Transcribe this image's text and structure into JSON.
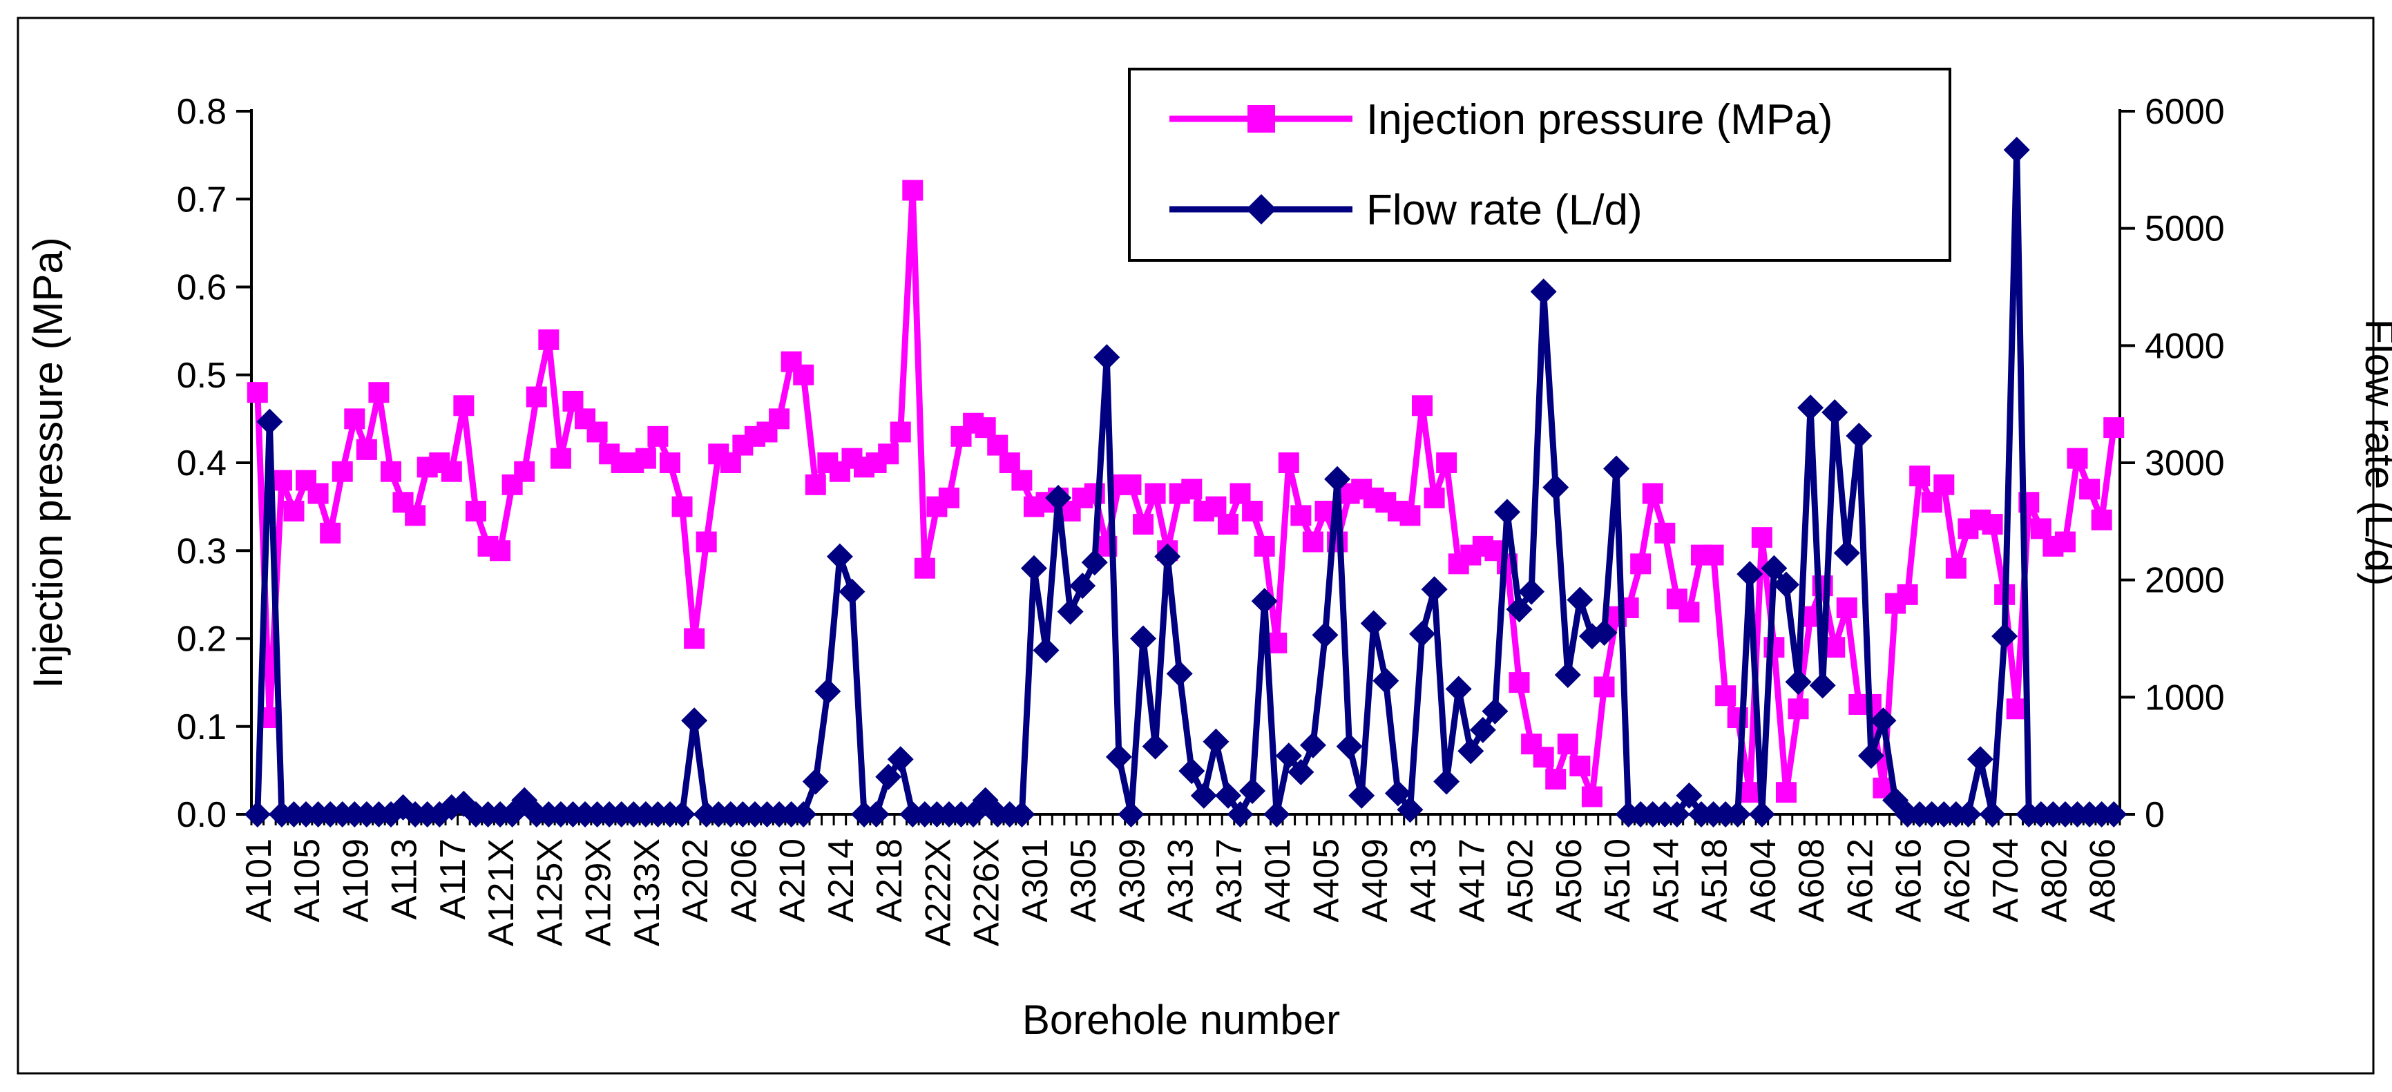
{
  "figure": {
    "background": "#ffffff",
    "border_color": "#000000"
  },
  "chart_data": {
    "type": "line",
    "title": "",
    "xlabel": "Borehole number",
    "ylabel_left": "Injection pressure (MPa)",
    "ylabel_right": "Flow rate (L/d)",
    "y_left": {
      "min": 0.0,
      "max": 0.8,
      "step": 0.1,
      "decimals": 1
    },
    "y_right": {
      "min": 0,
      "max": 6000,
      "step": 1000
    },
    "grid": false,
    "legend_position": "top-right-inside",
    "x_tick_labels": [
      "A101",
      "A105",
      "A109",
      "A113",
      "A117",
      "A121X",
      "A125X",
      "A129X",
      "A133X",
      "A202",
      "A206",
      "A210",
      "A214",
      "A218",
      "A222X",
      "A226X",
      "A301",
      "A305",
      "A309",
      "A313",
      "A317",
      "A401",
      "A405",
      "A409",
      "A413",
      "A417",
      "A502",
      "A506",
      "A510",
      "A514",
      "A518",
      "A604",
      "A608",
      "A612",
      "A616",
      "A620",
      "A704",
      "A802",
      "A806"
    ],
    "label_every": 4,
    "n_points": 154,
    "series": [
      {
        "name": "Injection pressure (MPa)",
        "color": "#FF00FF",
        "marker": "square",
        "axis": "left",
        "values": [
          0.48,
          0.11,
          0.38,
          0.345,
          0.38,
          0.365,
          0.32,
          0.39,
          0.45,
          0.415,
          0.48,
          0.39,
          0.355,
          0.34,
          0.395,
          0.4,
          0.39,
          0.465,
          0.345,
          0.305,
          0.3,
          0.375,
          0.39,
          0.475,
          0.54,
          0.405,
          0.47,
          0.45,
          0.435,
          0.41,
          0.4,
          0.4,
          0.405,
          0.43,
          0.4,
          0.35,
          0.2,
          0.31,
          0.41,
          0.4,
          0.42,
          0.43,
          0.435,
          0.45,
          0.515,
          0.5,
          0.375,
          0.4,
          0.39,
          0.405,
          0.395,
          0.4,
          0.41,
          0.435,
          0.71,
          0.28,
          0.35,
          0.36,
          0.43,
          0.445,
          0.44,
          0.42,
          0.4,
          0.38,
          0.35,
          0.355,
          0.36,
          0.345,
          0.36,
          0.365,
          0.305,
          0.375,
          0.375,
          0.33,
          0.365,
          0.3,
          0.365,
          0.37,
          0.345,
          0.35,
          0.33,
          0.365,
          0.345,
          0.305,
          0.195,
          0.4,
          0.34,
          0.31,
          0.345,
          0.31,
          0.365,
          0.37,
          0.36,
          0.355,
          0.345,
          0.34,
          0.465,
          0.36,
          0.4,
          0.285,
          0.295,
          0.305,
          0.3,
          0.285,
          0.15,
          0.08,
          0.065,
          0.04,
          0.08,
          0.055,
          0.02,
          0.145,
          0.225,
          0.235,
          0.285,
          0.365,
          0.32,
          0.245,
          0.23,
          0.295,
          0.295,
          0.135,
          0.11,
          0.025,
          0.315,
          0.19,
          0.025,
          0.12,
          0.225,
          0.26,
          0.19,
          0.235,
          0.125,
          0.125,
          0.03,
          0.24,
          0.25,
          0.385,
          0.355,
          0.375,
          0.28,
          0.325,
          0.335,
          0.33,
          0.25,
          0.12,
          0.355,
          0.325,
          0.305,
          0.31,
          0.405,
          0.37,
          0.335,
          0.44
        ]
      },
      {
        "name": "Flow rate (L/d)",
        "color": "#000080",
        "marker": "diamond",
        "axis": "right",
        "values": [
          0,
          3350,
          0,
          0,
          0,
          0,
          0,
          0,
          0,
          0,
          0,
          0,
          60,
          0,
          0,
          0,
          60,
          90,
          0,
          0,
          0,
          0,
          120,
          0,
          0,
          0,
          0,
          0,
          0,
          0,
          0,
          0,
          0,
          0,
          0,
          0,
          800,
          0,
          0,
          0,
          0,
          0,
          0,
          0,
          0,
          0,
          280,
          1050,
          2200,
          1900,
          0,
          0,
          320,
          470,
          0,
          0,
          0,
          0,
          0,
          0,
          120,
          0,
          0,
          0,
          2100,
          1400,
          2700,
          1730,
          1950,
          2150,
          3900,
          490,
          0,
          1500,
          580,
          2200,
          1200,
          370,
          160,
          620,
          160,
          0,
          200,
          1820,
          0,
          500,
          360,
          590,
          1530,
          2860,
          580,
          160,
          1630,
          1140,
          180,
          40,
          1540,
          1920,
          280,
          1070,
          540,
          720,
          880,
          2580,
          1750,
          1900,
          4460,
          2790,
          1190,
          1830,
          1520,
          1550,
          2950,
          0,
          0,
          0,
          0,
          0,
          160,
          0,
          0,
          0,
          0,
          2050,
          0,
          2100,
          1960,
          1130,
          3470,
          1100,
          3430,
          2230,
          3230,
          500,
          800,
          120,
          0,
          0,
          0,
          0,
          0,
          0,
          470,
          0,
          1520,
          5670,
          0,
          0,
          0,
          0,
          0,
          0,
          0,
          0
        ]
      }
    ]
  }
}
